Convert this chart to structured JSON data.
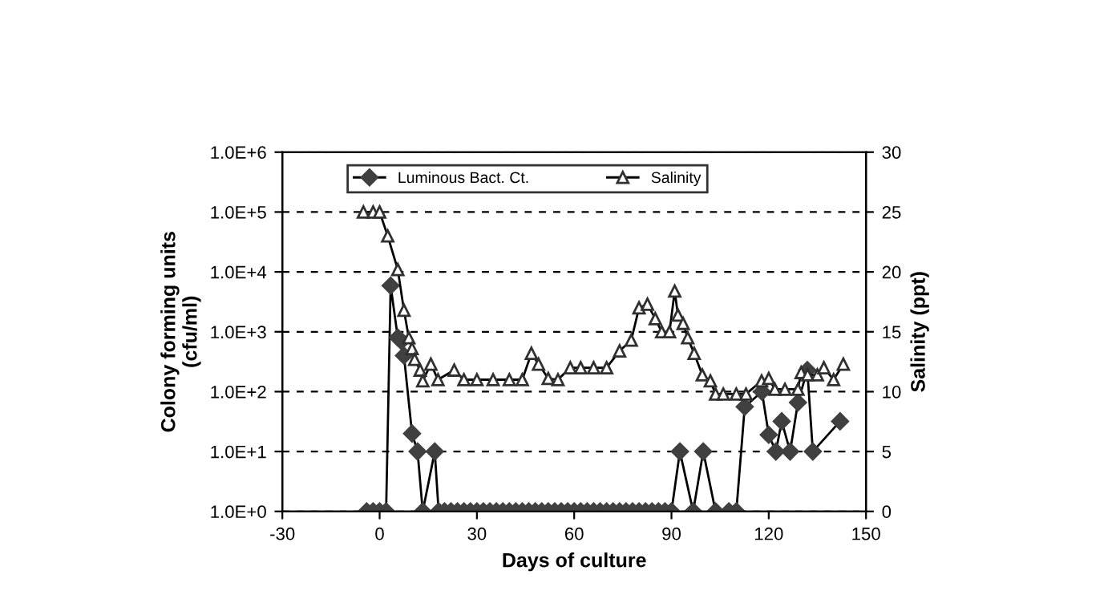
{
  "chart_data": {
    "type": "line",
    "xlabel": "Days of culture",
    "ylabel": "Colony forming units\n(cfu/ml)",
    "y2label": "Salinity (ppt)",
    "log": "y",
    "grid": "y",
    "legend": "top",
    "line_style": "solid",
    "xlim": [
      -30,
      150
    ],
    "xticks": [
      -30,
      0,
      30,
      60,
      90,
      120,
      150
    ],
    "ylim": [
      1,
      1000000
    ],
    "yticks": [
      {
        "value": 1,
        "label": "1.0E+0"
      },
      {
        "value": 10,
        "label": "1.0E+1"
      },
      {
        "value": 100,
        "label": "1.0E+2"
      },
      {
        "value": 1000,
        "label": "1.0E+3"
      },
      {
        "value": 10000,
        "label": "1.0E+4"
      },
      {
        "value": 100000,
        "label": "1.0E+5"
      },
      {
        "value": 1000000,
        "label": "1.0E+6"
      }
    ],
    "y2lim": [
      0,
      30
    ],
    "y2ticks": [
      0,
      5,
      10,
      15,
      20,
      25,
      30
    ],
    "series": [
      {
        "name": "Luminous Bact. Ct.",
        "color": "#404040",
        "marker": "diamond",
        "x": [
          -4,
          -2,
          0,
          2,
          3.4,
          5.6,
          6.7,
          7.5,
          10,
          11.7,
          13.3,
          17,
          18.2,
          20,
          22,
          24,
          26,
          28,
          30,
          32,
          34,
          36,
          38,
          40,
          42,
          44,
          46,
          48,
          50,
          52,
          54,
          56,
          58,
          60,
          62,
          64,
          66,
          68,
          70,
          72,
          74,
          76,
          78,
          80,
          82,
          84,
          86,
          88,
          90,
          92.6,
          96.7,
          99.8,
          103.6,
          107.7,
          110,
          112.6,
          117.9,
          120,
          122.2,
          124,
          126.6,
          129,
          131.9,
          133.6,
          142
        ],
        "values": [
          1,
          1,
          1,
          1,
          5900,
          800,
          700,
          400,
          20,
          10,
          1,
          10,
          1,
          1,
          1,
          1,
          1,
          1,
          1,
          1,
          1,
          1,
          1,
          1,
          1,
          1,
          1,
          1,
          1,
          1,
          1,
          1,
          1,
          1,
          1,
          1,
          1,
          1,
          1,
          1,
          1,
          1,
          1,
          1,
          1,
          1,
          1,
          1,
          1,
          10,
          1,
          10,
          1,
          1,
          1,
          56,
          100,
          19,
          10,
          32,
          10,
          66,
          230,
          10,
          32
        ]
      },
      {
        "name": "Salinity",
        "color": "#303030",
        "marker": "triangle",
        "axis": "y2",
        "x": [
          -5,
          -2,
          0,
          2.5,
          5.6,
          7.5,
          9,
          10,
          10.8,
          12.5,
          13.3,
          15.8,
          18,
          23,
          26,
          30,
          35,
          40,
          44,
          46.8,
          49,
          52,
          55,
          58.8,
          62,
          66,
          70,
          74,
          77.6,
          80,
          82.6,
          85,
          87,
          89.4,
          91,
          92,
          93.6,
          95,
          97,
          99.5,
          102,
          103.6,
          106,
          110,
          113,
          117.8,
          120,
          121.9,
          125,
          129,
          130,
          132,
          135,
          137,
          140,
          143
        ],
        "values": [
          25,
          25,
          25,
          23,
          20.2,
          16.8,
          14.5,
          13.6,
          12.7,
          11.8,
          10.9,
          12.3,
          11,
          11.8,
          11,
          11,
          11,
          11,
          11,
          13.2,
          12.3,
          11.1,
          11,
          12,
          12,
          12,
          12,
          13.4,
          14.3,
          17,
          17.3,
          16.1,
          15,
          15,
          18.4,
          16.4,
          15.7,
          14.5,
          13.2,
          11.4,
          10.9,
          9.8,
          9.8,
          9.8,
          9.8,
          10.9,
          11.1,
          10.2,
          10.2,
          10.2,
          11.6,
          11.4,
          11.4,
          12,
          11,
          12.3
        ]
      }
    ]
  }
}
